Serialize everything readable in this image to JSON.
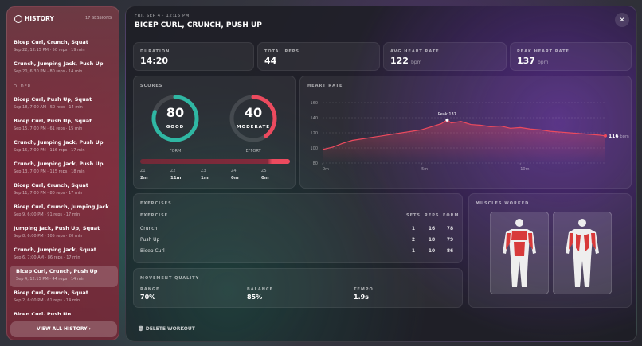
{
  "history": {
    "title": "HISTORY",
    "count": "17 SESSIONS",
    "items_recent": [
      {
        "title": "Bicep Curl, Crunch, Squat",
        "meta": "Sep 22, 12:15 PM · 50 reps · 19 min"
      },
      {
        "title": "Crunch, Jumping Jack, Push Up",
        "meta": "Sep 20, 6:30 PM · 80 reps · 14 min"
      }
    ],
    "older_label": "OLDER",
    "items_older": [
      {
        "title": "Bicep Curl, Push Up, Squat",
        "meta": "Sep 18, 7:00 AM · 50 reps · 14 min"
      },
      {
        "title": "Bicep Curl, Push Up, Squat",
        "meta": "Sep 15, 7:00 PM · 61 reps · 15 min"
      },
      {
        "title": "Crunch, Jumping Jack, Push Up",
        "meta": "Sep 15, 7:00 PM · 116 reps · 17 min"
      },
      {
        "title": "Crunch, Jumping Jack, Push Up",
        "meta": "Sep 13, 7:00 PM · 115 reps · 18 min"
      },
      {
        "title": "Bicep Curl, Crunch, Squat",
        "meta": "Sep 11, 7:00 PM · 80 reps · 17 min"
      },
      {
        "title": "Bicep Curl, Crunch, Jumping Jack",
        "meta": "Sep 9, 6:00 PM · 91 reps · 17 min"
      },
      {
        "title": "Jumping Jack, Push Up, Squat",
        "meta": "Sep 8, 6:00 PM · 105 reps · 20 min"
      },
      {
        "title": "Crunch, Jumping Jack, Squat",
        "meta": "Sep 6, 7:00 AM · 86 reps · 17 min"
      },
      {
        "title": "Bicep Curl, Crunch, Push Up",
        "meta": "Sep 4, 12:15 PM · 44 reps · 14 min",
        "selected": true
      },
      {
        "title": "Bicep Curl, Crunch, Squat",
        "meta": "Sep 2, 6:00 PM · 61 reps · 14 min"
      },
      {
        "title": "Bicep Curl, Push Up",
        "meta": ""
      }
    ],
    "view_all": "VIEW ALL HISTORY ›"
  },
  "detail": {
    "date": "FRI, SEP 4 · 12:15 PM",
    "title": "BICEP CURL, CRUNCH, PUSH UP",
    "close": "×",
    "stats": [
      {
        "label": "DURATION",
        "value": "14:20"
      },
      {
        "label": "TOTAL REPS",
        "value": "44"
      },
      {
        "label": "AVG HEART RATE",
        "value": "122",
        "unit": "bpm"
      },
      {
        "label": "PEAK HEART RATE",
        "value": "137",
        "unit": "bpm"
      }
    ],
    "scores": {
      "title": "SCORES",
      "ring_lim": [
        0,
        100
      ],
      "form": {
        "value": 80,
        "rating": "GOOD",
        "label": "FORM",
        "color": "#2fb7a3"
      },
      "effort": {
        "value": 40,
        "rating": "MODERATE",
        "label": "EFFORT",
        "color": "#ec4a5e"
      },
      "zones": [
        {
          "name": "Z1",
          "time": "2m"
        },
        {
          "name": "Z2",
          "time": "11m"
        },
        {
          "name": "Z3",
          "time": "1m"
        },
        {
          "name": "Z4",
          "time": "0m"
        },
        {
          "name": "Z5",
          "time": "0m"
        }
      ]
    },
    "heart_rate": {
      "title": "HEART RATE",
      "color": "#ec4a5e",
      "peak_label": "Peak 137",
      "peak_index": 13,
      "unit": "bpm",
      "x": [
        0,
        0.5,
        1,
        1.5,
        2,
        2.5,
        3,
        3.5,
        4,
        4.5,
        5,
        5.5,
        6,
        6.3,
        6.5,
        7,
        7.5,
        8,
        8.5,
        9,
        9.5,
        10,
        10.5,
        11,
        11.5,
        12,
        12.5,
        13,
        13.5,
        14,
        14.3
      ],
      "values": [
        98,
        101,
        106,
        110,
        112,
        114,
        116,
        118,
        120,
        122,
        124,
        128,
        132,
        137,
        133,
        135,
        131,
        130,
        128,
        129,
        126,
        127,
        125,
        124,
        122,
        121,
        120,
        119,
        118,
        117,
        116
      ],
      "xlim": [
        0,
        14.3
      ],
      "xticks": [
        {
          "value": 0,
          "label": "0m"
        },
        {
          "value": 5,
          "label": "5m"
        },
        {
          "value": 10,
          "label": "10m"
        }
      ],
      "ylim": [
        80,
        160
      ],
      "yticks": [
        80,
        100,
        120,
        140,
        160
      ],
      "grid": true
    },
    "exercises": {
      "title": "EXERCISES",
      "columns": [
        "EXERCISE",
        "SETS",
        "REPS",
        "FORM"
      ],
      "rows": [
        [
          "Crunch",
          "1",
          "16",
          "78"
        ],
        [
          "Push Up",
          "2",
          "18",
          "79"
        ],
        [
          "Bicep Curl",
          "1",
          "10",
          "86"
        ]
      ]
    },
    "movement": {
      "title": "MOVEMENT QUALITY",
      "items": [
        {
          "label": "RANGE",
          "value": "70%"
        },
        {
          "label": "BALANCE",
          "value": "85%"
        },
        {
          "label": "TEMPO",
          "value": "1.9s"
        }
      ]
    },
    "muscles": {
      "title": "MUSCLES WORKED"
    },
    "delete": "DELETE WORKOUT"
  }
}
